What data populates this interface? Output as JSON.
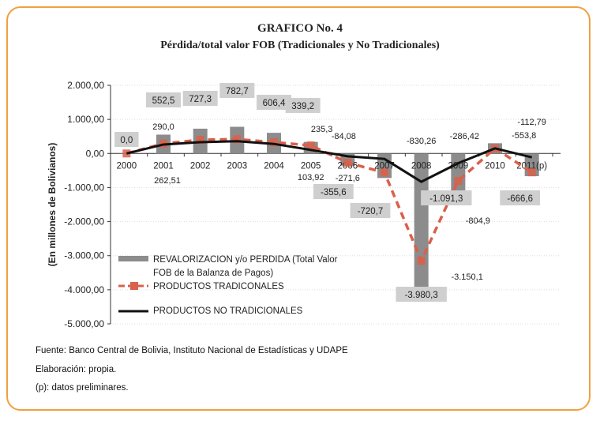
{
  "chart_data": {
    "type": "bar",
    "title": "GRAFICO No. 4",
    "subtitle": "Pérdida/total valor FOB (Tradicionales y No Tradicionales)",
    "ylabel": "(En millones de Bolivianos)",
    "ylim": [
      -5000,
      2000
    ],
    "yticks": [
      "2.000,00",
      "1.000,00",
      "0,00",
      "-1.000,00",
      "-2.000,00",
      "-3.000,00",
      "-4.000,00",
      "-5.000,00"
    ],
    "ytick_values": [
      2000,
      1000,
      0,
      -1000,
      -2000,
      -3000,
      -4000,
      -5000
    ],
    "categories": [
      "2000",
      "2001",
      "2002",
      "2003",
      "2004",
      "2005",
      "2006",
      "2007",
      "2008",
      "2009",
      "2010",
      "2011(p)"
    ],
    "series": [
      {
        "name": "REVALORIZACION y/o PERDIDA (Total Valor FOB de la Balanza de Pagos)",
        "type": "bar",
        "values": [
          0,
          552.5,
          727.3,
          782.7,
          606.4,
          339.2,
          -355.6,
          -720.7,
          -3980.3,
          -1091.3,
          300,
          -666.6
        ],
        "labels": [
          "0,0",
          "552,5",
          "727,3",
          "782,7",
          "606,4",
          "339,2",
          "-355,6",
          "-720,7",
          "-3.980,3",
          "-1.091,3",
          "",
          "-666,6"
        ]
      },
      {
        "name": "PRODUCTOS TRADICONALES",
        "type": "line-dashed",
        "values": [
          0,
          290.0,
          400,
          420,
          330,
          235.3,
          -271.6,
          -560,
          -3150.1,
          -804.9,
          150,
          -553.8
        ],
        "labels": [
          "",
          "290,0",
          "",
          "",
          "",
          "235,3",
          "-271,6",
          "",
          "-3.150,1",
          "-804,9",
          "",
          "-553,8"
        ]
      },
      {
        "name": "PRODUCTOS NO TRADICIONALES",
        "type": "line",
        "values": [
          0,
          262.51,
          330,
          360,
          280,
          103.92,
          -84.08,
          -160,
          -830.26,
          -286.42,
          150,
          -112.79
        ],
        "labels": [
          "",
          "262,51",
          "",
          "",
          "",
          "103,92",
          "-84,08",
          "",
          "-830,26",
          "-286,42",
          "",
          "-112,79"
        ]
      }
    ],
    "legend_position": "bottom-left",
    "colors": {
      "bar": "#8c8c8c",
      "traditional": "#d9604a",
      "non_traditional": "#111111",
      "label_box": "#cfcfcf"
    }
  },
  "footer": {
    "source": "Fuente: Banco Central de Bolivia, Instituto Nacional de Estadísticas y UDAPE",
    "elaboration": "Elaboración: propia.",
    "note": "(p): datos preliminares."
  }
}
